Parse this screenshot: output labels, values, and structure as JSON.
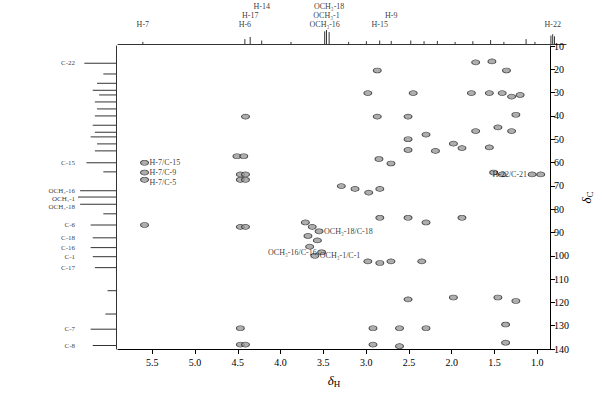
{
  "chart_data": {
    "type": "scatter",
    "x_label": "δH",
    "y_label": "δC",
    "xlim": [
      5.9,
      0.85
    ],
    "xticks": [
      5.5,
      {
        "value": 5,
        "label": "5.0"
      },
      4.5,
      {
        "value": 4,
        "label": "4.0"
      },
      3.5,
      {
        "value": 3,
        "label": "3.0"
      },
      2.5,
      {
        "value": 2,
        "label": "2.0"
      },
      1.5,
      {
        "value": 1,
        "label": "1.0"
      }
    ],
    "ylim": [
      140,
      10
    ],
    "yticks": [
      10,
      20,
      30,
      40,
      50,
      60,
      70,
      80,
      90,
      100,
      110,
      120,
      130,
      140
    ],
    "grid": false,
    "color": "#9a9a9a",
    "peaks": [
      [
        1.72,
        17.0
      ],
      [
        1.53,
        16.6
      ],
      [
        2.87,
        20.5
      ],
      [
        1.36,
        20.5
      ],
      [
        2.98,
        30.2
      ],
      [
        2.45,
        30.2
      ],
      [
        1.77,
        30.2
      ],
      [
        1.56,
        30.2
      ],
      [
        1.41,
        30.2
      ],
      [
        1.3,
        31.7
      ],
      [
        1.2,
        31.0
      ],
      [
        4.41,
        40.3
      ],
      [
        2.87,
        40.3
      ],
      [
        2.51,
        40.3
      ],
      [
        1.25,
        39.5
      ],
      [
        1.46,
        44.9
      ],
      [
        1.72,
        46.5
      ],
      [
        1.3,
        46.5
      ],
      [
        2.3,
        48.0
      ],
      [
        2.51,
        50.0
      ],
      [
        1.98,
        51.9
      ],
      [
        1.88,
        53.8
      ],
      [
        2.51,
        54.6
      ],
      [
        2.19,
        55.0
      ],
      [
        1.56,
        53.5
      ],
      [
        4.51,
        57.3
      ],
      [
        4.43,
        57.3
      ],
      [
        2.85,
        58.5
      ],
      [
        2.71,
        60.4
      ],
      [
        5.59,
        60.1
      ],
      [
        5.59,
        64.3
      ],
      [
        5.59,
        67.4
      ],
      [
        4.47,
        65.1
      ],
      [
        4.41,
        65.1
      ],
      [
        4.47,
        67.4
      ],
      [
        4.41,
        67.4
      ],
      [
        1.51,
        64.3
      ],
      [
        1.41,
        65.1
      ],
      [
        1.06,
        65.1
      ],
      [
        0.96,
        65.1
      ],
      [
        3.29,
        70.1
      ],
      [
        3.13,
        71.3
      ],
      [
        2.97,
        72.9
      ],
      [
        2.84,
        71.3
      ],
      [
        2.84,
        83.7
      ],
      [
        2.51,
        83.7
      ],
      [
        2.3,
        85.7
      ],
      [
        1.88,
        83.7
      ],
      [
        4.47,
        87.6
      ],
      [
        4.41,
        87.6
      ],
      [
        5.59,
        86.8
      ],
      [
        3.71,
        85.7
      ],
      [
        3.63,
        87.6
      ],
      [
        3.55,
        89.5
      ],
      [
        3.68,
        91.5
      ],
      [
        3.57,
        93.4
      ],
      [
        3.66,
        96.1
      ],
      [
        3.52,
        98.5
      ],
      [
        3.6,
        100.0
      ],
      [
        2.98,
        102.4
      ],
      [
        2.84,
        103.1
      ],
      [
        2.71,
        102.4
      ],
      [
        2.35,
        102.4
      ],
      [
        2.51,
        118.7
      ],
      [
        1.98,
        117.9
      ],
      [
        1.46,
        117.9
      ],
      [
        1.25,
        119.4
      ],
      [
        4.47,
        131.1
      ],
      [
        2.92,
        131.1
      ],
      [
        2.61,
        131.1
      ],
      [
        2.3,
        131.1
      ],
      [
        1.37,
        129.5
      ],
      [
        4.47,
        138.1
      ],
      [
        4.41,
        138.1
      ],
      [
        2.92,
        138.1
      ],
      [
        2.61,
        138.8
      ],
      [
        1.37,
        137.3
      ]
    ],
    "top_spectrum": [
      [
        5.62,
        0.15
      ],
      [
        4.47,
        0.35
      ],
      [
        4.41,
        0.5
      ],
      [
        4.28,
        0.25
      ],
      [
        3.95,
        0.15
      ],
      [
        3.57,
        0.9
      ],
      [
        3.55,
        1.0
      ],
      [
        3.52,
        0.85
      ],
      [
        3.3,
        0.15
      ],
      [
        3.1,
        0.2
      ],
      [
        2.95,
        0.25
      ],
      [
        2.82,
        0.22
      ],
      [
        2.6,
        0.25
      ],
      [
        2.45,
        0.2
      ],
      [
        2.3,
        0.22
      ],
      [
        2.1,
        0.15
      ],
      [
        1.9,
        0.2
      ],
      [
        1.7,
        0.28
      ],
      [
        1.55,
        0.15
      ],
      [
        1.3,
        0.35
      ],
      [
        1.2,
        0.15
      ],
      [
        1.02,
        0.6
      ],
      [
        1.0,
        0.7
      ],
      [
        0.98,
        0.55
      ]
    ],
    "left_spectrum": [
      [
        17.4,
        0.75
      ],
      [
        22,
        0.3
      ],
      [
        26,
        0.45
      ],
      [
        29,
        0.55
      ],
      [
        31,
        0.4
      ],
      [
        34,
        0.5
      ],
      [
        37,
        0.45
      ],
      [
        40,
        0.5
      ],
      [
        44,
        0.55
      ],
      [
        47,
        0.5
      ],
      [
        49,
        0.6
      ],
      [
        52,
        0.45
      ],
      [
        55,
        0.5
      ],
      [
        60.1,
        0.7
      ],
      [
        64,
        0.3
      ],
      [
        72.1,
        0.85
      ],
      [
        74.8,
        0.9
      ],
      [
        77.9,
        0.85
      ],
      [
        82,
        0.3
      ],
      [
        86.8,
        0.6
      ],
      [
        92.3,
        0.55
      ],
      [
        96.5,
        0.6
      ],
      [
        100.4,
        0.55
      ],
      [
        105.1,
        0.5
      ],
      [
        115,
        0.2
      ],
      [
        125,
        0.25
      ],
      [
        131.5,
        0.6
      ],
      [
        138.5,
        0.55
      ]
    ],
    "top_labels": [
      {
        "text": "H-7",
        "x": 5.62
      },
      {
        "text": "H-6",
        "x": 4.47
      },
      {
        "text": "H-17",
        "x": 4.41
      },
      {
        "text": "H-14",
        "x": 4.28
      },
      {
        "text": "OCH₃-16",
        "x": 3.57
      },
      {
        "text": "OCH₃-1",
        "x": 3.55
      },
      {
        "text": "OCH₃-18",
        "x": 3.52
      },
      {
        "text": "H-15",
        "x": 2.95
      },
      {
        "text": "H-9",
        "x": 2.82
      },
      {
        "text": "H-22",
        "x": 1.0
      }
    ],
    "left_labels": [
      {
        "text": "C-22",
        "y": 17.4
      },
      {
        "text": "C-15",
        "y": 60.1
      },
      {
        "text": "OCH₃-16",
        "y": 72.1
      },
      {
        "text": "OCH₃-1",
        "y": 74.8
      },
      {
        "text": "OCH₃-18",
        "y": 77.9
      },
      {
        "text": "C-6",
        "y": 86.8
      },
      {
        "text": "C-18",
        "y": 92.3
      },
      {
        "text": "C-16",
        "y": 96.5
      },
      {
        "text": "C-1",
        "y": 100.4
      },
      {
        "text": "C-17",
        "y": 105.1
      },
      {
        "text": "C-7",
        "y": 131.5
      },
      {
        "text": "C-8",
        "y": 138.5
      }
    ],
    "annotations": [
      {
        "text": "H-7/C-15",
        "x": 5.59,
        "y": 60.1
      },
      {
        "text": "H-7/C-9",
        "x": 5.59,
        "y": 64.3
      },
      {
        "text": "H-7/C-5",
        "x": 5.59,
        "y": 67.4
      },
      {
        "text": "H-22/C-21",
        "x": 1.06,
        "y": 65.1
      },
      {
        "text": "OCH₃-18/C-18",
        "x": 3.55,
        "y": 89.5
      },
      {
        "text": "OCH₃-1/C-1",
        "x": 3.6,
        "y": 100.0
      },
      {
        "text": "OCH₃-16/C-16",
        "x": 3.52,
        "y": 98.5
      }
    ]
  }
}
